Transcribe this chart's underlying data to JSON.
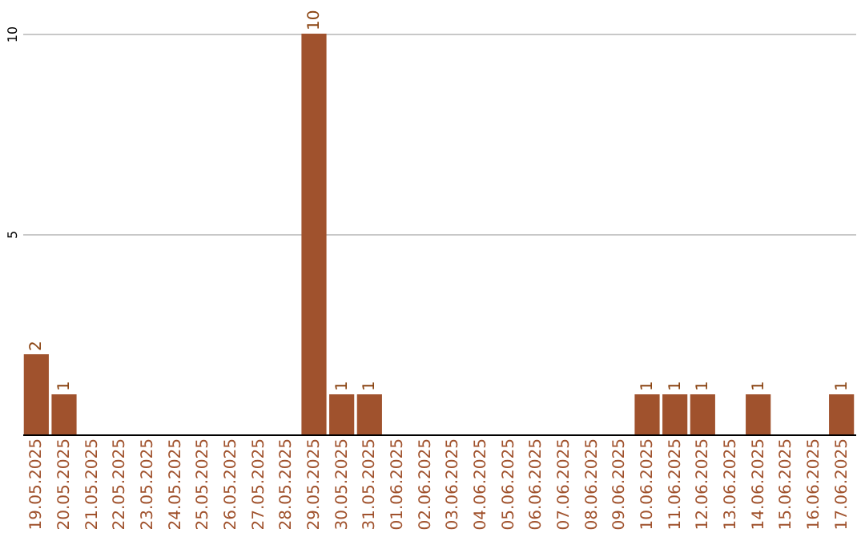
{
  "chart_data": {
    "type": "bar",
    "categories": [
      "19.05.2025",
      "20.05.2025",
      "21.05.2025",
      "22.05.2025",
      "23.05.2025",
      "24.05.2025",
      "25.05.2025",
      "26.05.2025",
      "27.05.2025",
      "28.05.2025",
      "29.05.2025",
      "30.05.2025",
      "31.05.2025",
      "01.06.2025",
      "02.06.2025",
      "03.06.2025",
      "04.06.2025",
      "05.06.2025",
      "06.06.2025",
      "07.06.2025",
      "08.06.2025",
      "09.06.2025",
      "10.06.2025",
      "11.06.2025",
      "12.06.2025",
      "13.06.2025",
      "14.06.2025",
      "15.06.2025",
      "16.06.2025",
      "17.06.2025"
    ],
    "values": [
      2,
      1,
      0,
      0,
      0,
      0,
      0,
      0,
      0,
      0,
      10,
      1,
      1,
      0,
      0,
      0,
      0,
      0,
      0,
      0,
      0,
      0,
      1,
      1,
      1,
      0,
      1,
      0,
      0,
      1
    ],
    "value_labels": [
      "2",
      "1",
      null,
      null,
      null,
      null,
      null,
      null,
      null,
      null,
      "10",
      "1",
      "1",
      null,
      null,
      null,
      null,
      null,
      null,
      null,
      null,
      null,
      "1",
      "1",
      "1",
      null,
      "1",
      null,
      null,
      "1"
    ],
    "color": "#a0522d",
    "ylim": [
      0,
      10
    ],
    "yticks": [
      {
        "value": 0,
        "label": null
      },
      5,
      10
    ],
    "grid": "y"
  }
}
